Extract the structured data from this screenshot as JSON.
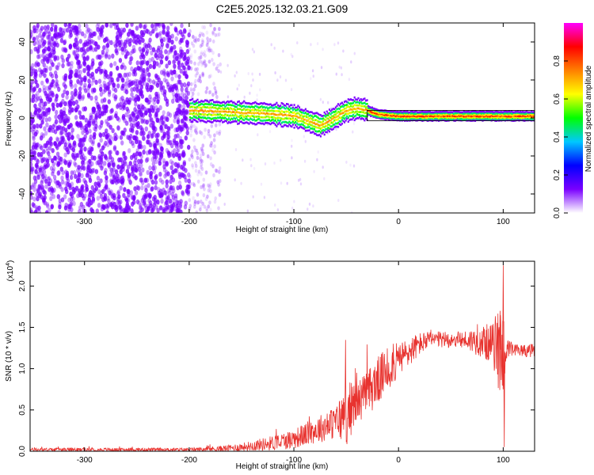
{
  "title": "C2E5.2025.132.03.21.G09",
  "chart_data": [
    {
      "type": "heatmap",
      "xlabel": "Height of straight line (km)",
      "ylabel": "Frequency (Hz)",
      "xlim": [
        -352,
        130
      ],
      "ylim": [
        -50,
        50
      ],
      "xticks": [
        -300,
        -200,
        -100,
        0,
        100
      ],
      "yticks": [
        -40,
        -20,
        0,
        20,
        40
      ],
      "grid": false,
      "colorbar": {
        "label": "Normalized spectral amplitude",
        "range": [
          0,
          1
        ],
        "ticks": [
          0.0,
          0.2,
          0.4,
          0.6,
          0.8
        ],
        "tick_labels": [
          "0.0",
          "0.2",
          "0.4",
          "0.6",
          "0.8"
        ],
        "colormap": [
          "#ffffff",
          "#7a00ff",
          "#0000ff",
          "#00c8ff",
          "#00ff00",
          "#ffff00",
          "#ff8000",
          "#ff0000",
          "#ff00ff"
        ]
      },
      "features": {
        "noise_region_x": [
          -352,
          -200
        ],
        "fading_noise_x": [
          -200,
          -170
        ],
        "signal_band": {
          "x": [
            -200,
            -160,
            -120,
            -100,
            -90,
            -75,
            -65,
            -50,
            -40,
            -30,
            -20,
            0,
            40,
            95,
            130
          ],
          "y": [
            4,
            3,
            2,
            1,
            -1,
            -4,
            -1,
            4,
            5,
            4,
            2,
            1,
            1,
            1,
            1
          ]
        },
        "gate_box_x": [
          -30,
          130
        ],
        "gate_box_y": [
          -1.5,
          4
        ]
      }
    },
    {
      "type": "line",
      "xlabel": "Height of straight line (km)",
      "ylabel": "SNR (10 * v/v)",
      "scale_note": "(x10",
      "scale_exp": "4",
      "xlim": [
        -352,
        130
      ],
      "ylim": [
        0,
        2.3
      ],
      "xticks": [
        -300,
        -200,
        -100,
        0,
        100
      ],
      "yticks": [
        0.0,
        0.5,
        1.0,
        1.5,
        2.0
      ],
      "ytick_labels": [
        "0.0",
        "0.5",
        "1.0",
        "1.5",
        "2.0"
      ],
      "grid": false,
      "series": [
        {
          "color": "#e8332f",
          "envelope": {
            "x": [
              -352,
              -300,
              -250,
              -200,
              -170,
              -150,
              -120,
              -100,
              -80,
              -60,
              -50,
              -40,
              -30,
              -20,
              -10,
              0,
              10,
              20,
              30,
              40,
              60,
              80,
              90,
              95,
              100,
              103,
              110,
              120,
              130
            ],
            "y": [
              0.02,
              0.02,
              0.02,
              0.02,
              0.03,
              0.05,
              0.1,
              0.15,
              0.25,
              0.35,
              0.45,
              0.6,
              0.7,
              0.85,
              1.0,
              1.1,
              1.2,
              1.3,
              1.35,
              1.35,
              1.35,
              1.33,
              1.3,
              1.25,
              1.2,
              1.22,
              1.22,
              1.22,
              1.22
            ]
          },
          "noise": {
            "x": [
              -352,
              -200,
              -150,
              -100,
              -60,
              -50,
              -40,
              -20,
              0,
              30,
              60,
              90,
              95,
              100,
              103,
              110,
              130
            ],
            "y": [
              0.02,
              0.02,
              0.05,
              0.12,
              0.2,
              0.4,
              0.25,
              0.3,
              0.22,
              0.1,
              0.1,
              0.25,
              0.5,
              0.6,
              0.15,
              0.08,
              0.08
            ]
          },
          "spikes": [
            [
              -40,
              0.95
            ],
            [
              -20,
              1.1
            ],
            [
              -5,
              1.3
            ],
            [
              97,
              1.7
            ],
            [
              100,
              2.25
            ],
            [
              101,
              0.05
            ]
          ]
        }
      ]
    }
  ]
}
